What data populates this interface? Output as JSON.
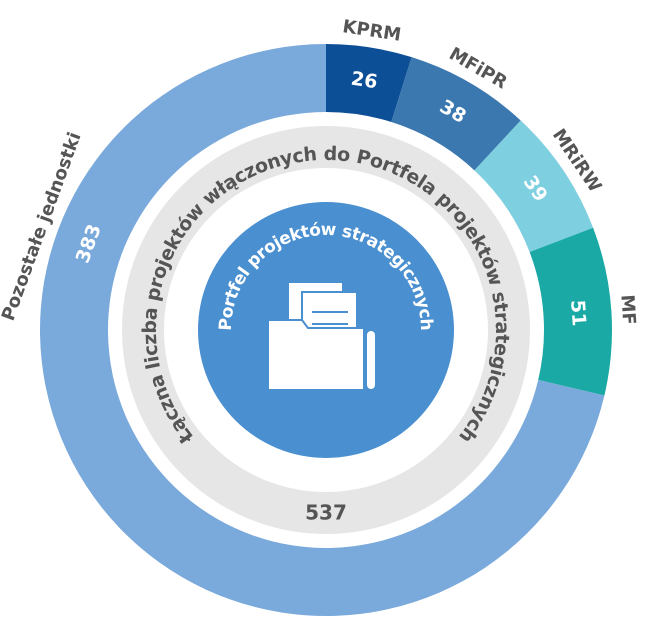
{
  "chart_data": {
    "type": "donut",
    "center_title": "Portfel projektów strategicznych",
    "ring_title": "Łączna liczba projektów włączonych do Portfela projektów strategicznych",
    "total": 537,
    "categories": [
      "KPRM",
      "MFiPR",
      "MRiRW",
      "MF",
      "Pozostałe jednostki"
    ],
    "values": [
      26,
      38,
      39,
      51,
      383
    ],
    "colors": [
      "#0d4f96",
      "#3b78b0",
      "#7ecfe0",
      "#1aa9a4",
      "#7aa9db"
    ]
  }
}
